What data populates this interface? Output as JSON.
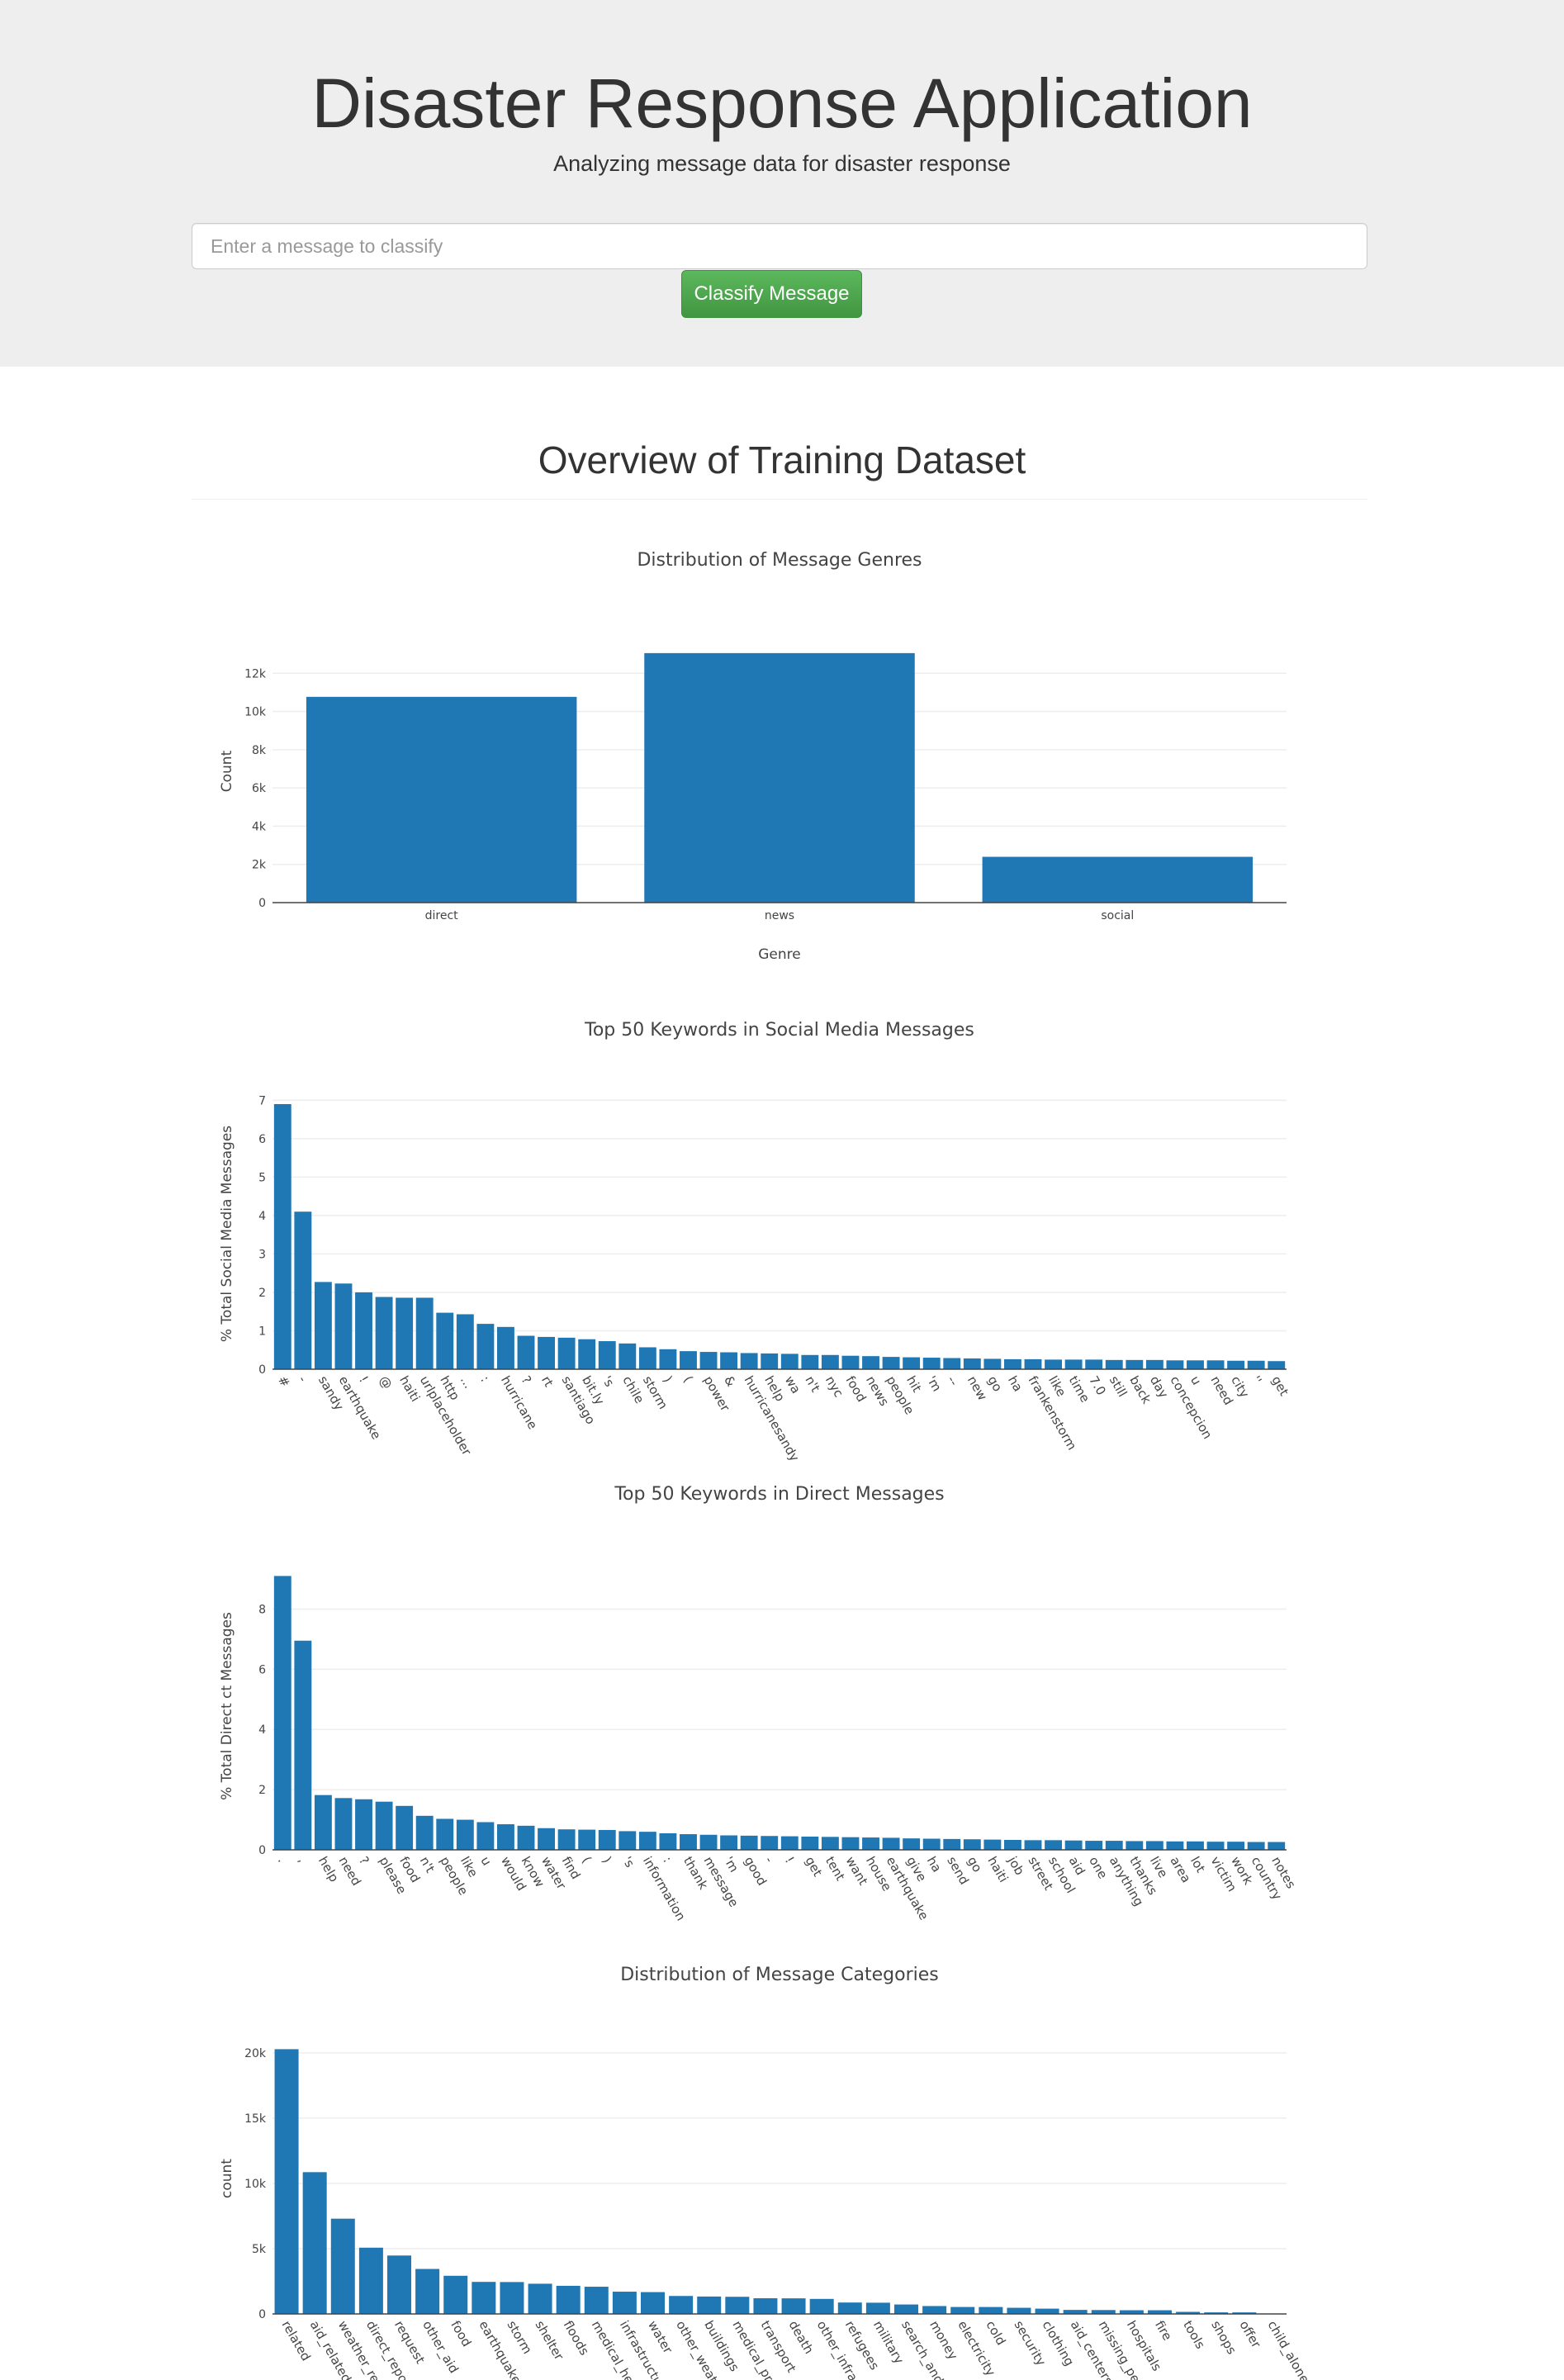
{
  "header": {
    "title": "Disaster Response Application",
    "subtitle": "Analyzing message data for disaster response",
    "input_placeholder": "Enter a message to classify",
    "button_label": "Classify Message",
    "button_color": "#5cb85c"
  },
  "overview": {
    "title": "Overview of Training Dataset"
  },
  "chart_data": [
    {
      "type": "bar",
      "title": "Distribution of Message Genres",
      "xlabel": "Genre",
      "ylabel": "Count",
      "categories": [
        "direct",
        "news",
        "social"
      ],
      "values": [
        10766,
        13054,
        2396
      ],
      "yticks": [
        0,
        2000,
        4000,
        6000,
        8000,
        10000,
        12000
      ],
      "ytick_labels": [
        "0",
        "2k",
        "4k",
        "6k",
        "8k",
        "10k",
        "12k"
      ],
      "ylim": [
        0,
        13740
      ],
      "color": "#1f77b4",
      "grid": true
    },
    {
      "type": "bar",
      "title": "Top 50 Keywords in Social Media Messages",
      "xlabel": "",
      "ylabel": "% Total Social Media Messages",
      "categories": [
        "#",
        "-",
        "sandy",
        "earthquake",
        "!",
        "@",
        "haiti",
        "urlplaceholder",
        "http",
        "...",
        ":",
        "hurricane",
        "?",
        "rt",
        "santiago",
        "bit.ly",
        "'s",
        "chile",
        "storm",
        ")",
        "(",
        "power",
        "&",
        "hurricanesandy",
        "help",
        "wa",
        "n't",
        "nyc",
        "food",
        "news",
        "people",
        "hit",
        "'m",
        "--",
        "new",
        "go",
        "ha",
        "frankenstorm",
        "like",
        "time",
        "7.0",
        "still",
        "back",
        "day",
        "concepcion",
        "u",
        "need",
        "city",
        "''",
        "get"
      ],
      "values": [
        6.9,
        4.1,
        2.27,
        2.23,
        2.0,
        1.88,
        1.86,
        1.86,
        1.47,
        1.43,
        1.18,
        1.1,
        0.87,
        0.84,
        0.82,
        0.78,
        0.73,
        0.67,
        0.57,
        0.52,
        0.47,
        0.45,
        0.44,
        0.42,
        0.41,
        0.4,
        0.37,
        0.37,
        0.35,
        0.34,
        0.32,
        0.31,
        0.3,
        0.29,
        0.28,
        0.27,
        0.26,
        0.26,
        0.25,
        0.25,
        0.25,
        0.24,
        0.24,
        0.24,
        0.23,
        0.23,
        0.23,
        0.22,
        0.22,
        0.21
      ],
      "yticks": [
        0,
        1,
        2,
        3,
        4,
        5,
        6,
        7
      ],
      "ytick_labels": [
        "0",
        "1",
        "2",
        "3",
        "4",
        "5",
        "6",
        "7"
      ],
      "ylim": [
        0,
        7.05
      ],
      "color": "#1f77b4",
      "grid": true
    },
    {
      "type": "bar",
      "title": "Top 50 Keywords in Direct Messages",
      "xlabel": "",
      "ylabel": "% Total Direct ct Messages",
      "categories": [
        ".",
        ",",
        "help",
        "need",
        "?",
        "please",
        "food",
        "n't",
        "people",
        "like",
        "u",
        "would",
        "know",
        "water",
        "find",
        "(",
        ")",
        "'s",
        "information",
        ":",
        "thank",
        "message",
        "'m",
        "good",
        "-",
        "!",
        "get",
        "tent",
        "want",
        "house",
        "earthquake",
        "give",
        "ha",
        "send",
        "go",
        "haiti",
        "job",
        "street",
        "school",
        "aid",
        "one",
        "anything",
        "thanks",
        "live",
        "area",
        "lot",
        "victim",
        "work",
        "country",
        "notes"
      ],
      "values": [
        9.1,
        6.95,
        1.82,
        1.72,
        1.68,
        1.6,
        1.46,
        1.13,
        1.03,
        1.0,
        0.92,
        0.85,
        0.8,
        0.72,
        0.68,
        0.67,
        0.66,
        0.62,
        0.6,
        0.55,
        0.52,
        0.5,
        0.48,
        0.47,
        0.46,
        0.45,
        0.44,
        0.43,
        0.42,
        0.41,
        0.4,
        0.38,
        0.37,
        0.36,
        0.35,
        0.34,
        0.33,
        0.32,
        0.32,
        0.31,
        0.3,
        0.3,
        0.29,
        0.29,
        0.28,
        0.28,
        0.27,
        0.27,
        0.26,
        0.26
      ],
      "yticks": [
        0,
        2,
        4,
        6,
        8
      ],
      "ytick_labels": [
        "0",
        "2",
        "4",
        "6",
        "8"
      ],
      "ylim": [
        0,
        9.55
      ],
      "color": "#1f77b4",
      "grid": true
    },
    {
      "type": "bar",
      "title": "Distribution of Message Categories",
      "xlabel": "",
      "ylabel": "count",
      "categories": [
        "related",
        "aid_related",
        "weather_related",
        "direct_report",
        "request",
        "other_aid",
        "food",
        "earthquake",
        "storm",
        "shelter",
        "floods",
        "medical_help",
        "infrastructure_related",
        "water",
        "other_weather",
        "buildings",
        "medical_products",
        "transport",
        "death",
        "other_infrastructure",
        "refugees",
        "military",
        "search_and_rescue",
        "money",
        "electricity",
        "cold",
        "security",
        "clothing",
        "aid_centers",
        "missing_people",
        "hospitals",
        "fire",
        "tools",
        "shops",
        "offer",
        "child_alone"
      ],
      "values": [
        20282,
        10860,
        7297,
        5075,
        4474,
        3446,
        2923,
        2455,
        2443,
        2314,
        2155,
        2084,
        1705,
        1672,
        1376,
        1333,
        1313,
        1201,
        1194,
        1151,
        875,
        860,
        724,
        604,
        532,
        530,
        471,
        405,
        309,
        298,
        283,
        282,
        159,
        120,
        118,
        0
      ],
      "yticks": [
        0,
        5000,
        10000,
        15000,
        20000
      ],
      "ytick_labels": [
        "0",
        "5k",
        "10k",
        "15k",
        "20k"
      ],
      "ylim": [
        0,
        20750
      ],
      "color": "#1f77b4",
      "grid": true
    }
  ]
}
